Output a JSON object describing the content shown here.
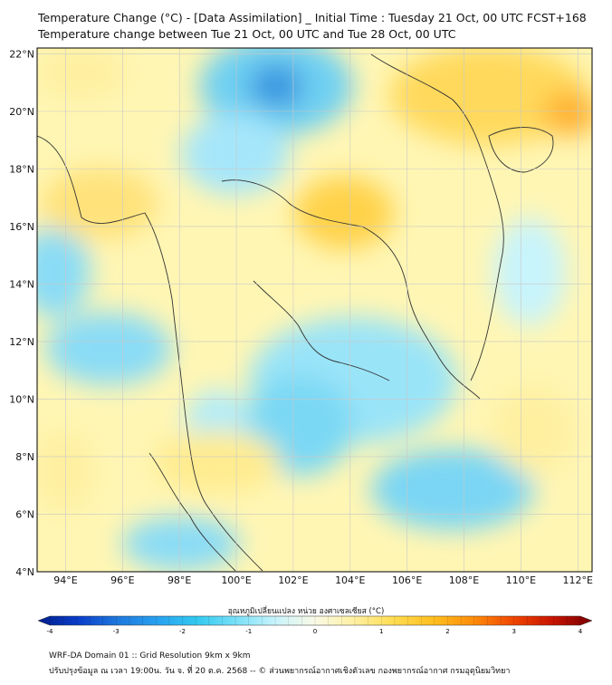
{
  "header": {
    "title_line1": "Temperature Change (°C) - [Data Assimilation] _ Initial Time : Tuesday 21 Oct, 00 UTC FCST+168",
    "title_line2": "Temperature change between Tue 21 Oct, 00 UTC and Tue 28 Oct, 00 UTC"
  },
  "map": {
    "lat_labels": [
      "22°N",
      "20°N",
      "18°N",
      "16°N",
      "14°N",
      "12°N",
      "10°N",
      "8°N",
      "6°N",
      "4°N"
    ],
    "lon_labels": [
      "94°E",
      "96°E",
      "98°E",
      "100°E",
      "102°E",
      "104°E",
      "106°E",
      "108°E",
      "110°E",
      "112°E"
    ],
    "lat_values": [
      22,
      20,
      18,
      16,
      14,
      12,
      10,
      8,
      6,
      4
    ],
    "lon_values": [
      94,
      96,
      98,
      100,
      102,
      104,
      106,
      108,
      110,
      112
    ],
    "extent": {
      "lon_min": 93,
      "lon_max": 112.5,
      "lat_min": 4,
      "lat_max": 22.2
    }
  },
  "colorbar": {
    "title": "อุณหภูมิเปลี่ยนแปลง หน่วย องศาเซลเซียส (°C)",
    "tick_labels": [
      "-4",
      "-3",
      "-2",
      "-1",
      "0",
      "1",
      "2",
      "3",
      "4"
    ],
    "min": -4,
    "max": 4,
    "colors": [
      "#001e8c",
      "#0a3cc8",
      "#1e78dc",
      "#28a0f0",
      "#32c8f0",
      "#78e0f8",
      "#c8f4fc",
      "#fafae6",
      "#fff0a0",
      "#ffdc50",
      "#ffbe1e",
      "#ff8c0a",
      "#f04600",
      "#c81400",
      "#780000"
    ]
  },
  "footer": {
    "line1": "WRF-DA Domain 01 :: Grid Resolution 9km x 9km",
    "line2": "ปรับปรุงข้อมูล ณ เวลา 19:00น. วัน จ. ที่ 20 ต.ค. 2568 -- © ส่วนพยากรณ์อากาศเชิงตัวเลข กองพยากรณ์อากาศ กรมอุตุนิยมวิทยา"
  }
}
